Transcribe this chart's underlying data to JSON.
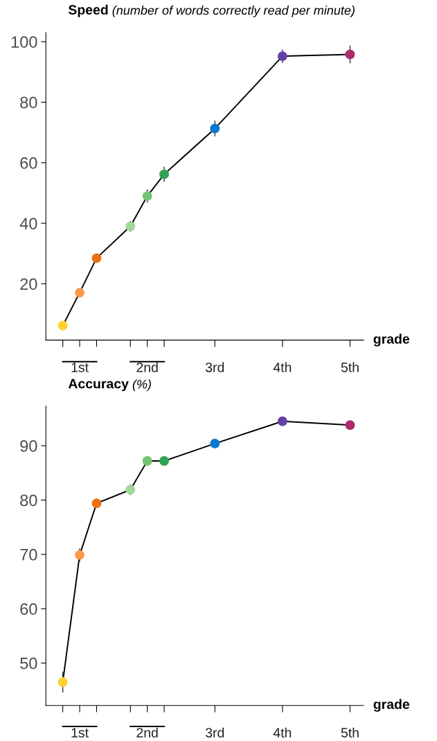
{
  "chart_data": [
    {
      "type": "line",
      "title": "Speed (number of words correctly read per minute)",
      "xlabel": "grade",
      "marker": "circle",
      "line_style": "solid",
      "x": [
        0.75,
        1,
        1.25,
        1.75,
        2,
        2.25,
        3,
        4,
        5
      ],
      "series": [
        {
          "color": "#000000",
          "colors": [
            "#fdd22c",
            "#fd9a4a",
            "#ec7014",
            "#a1d99b",
            "#74c476",
            "#31a354",
            "#0a77d0",
            "#6441a5",
            "#ad2b6d"
          ],
          "values": [
            6.2,
            17.1,
            28.5,
            39.0,
            49.0,
            56.2,
            71.3,
            95.2,
            95.8
          ],
          "errors": [
            null,
            null,
            null,
            1.8,
            2.2,
            2.5,
            2.6,
            2.2,
            2.9
          ]
        }
      ],
      "xlim": [
        0.5,
        5.2
      ],
      "xticks": [
        {
          "value": 0.75,
          "label": null
        },
        {
          "value": 1,
          "label": "1st"
        },
        {
          "value": 1.25,
          "label": null
        },
        {
          "value": 1.75,
          "label": null
        },
        {
          "value": 2,
          "label": "2nd"
        },
        {
          "value": 2.25,
          "label": null
        },
        {
          "value": 3,
          "label": "3rd"
        },
        {
          "value": 4,
          "label": "4th"
        },
        {
          "value": 5,
          "label": "5th"
        }
      ],
      "ylim": [
        1.4,
        103
      ],
      "yticks": [
        20,
        40,
        60,
        80,
        100
      ],
      "grid": false
    },
    {
      "type": "line",
      "title": "Accuracy (%)",
      "xlabel": "grade",
      "marker": "circle",
      "line_style": "solid",
      "x": [
        0.75,
        1,
        1.25,
        1.75,
        2,
        2.25,
        3,
        4,
        5
      ],
      "series": [
        {
          "color": "#000000",
          "colors": [
            "#fdd22c",
            "#fd9a4a",
            "#ec7014",
            "#a1d99b",
            "#74c476",
            "#31a354",
            "#0a77d0",
            "#6441a5",
            "#ad2b6d"
          ],
          "values": [
            46.5,
            69.9,
            79.4,
            81.9,
            87.2,
            87.2,
            90.4,
            94.5,
            93.8
          ],
          "errors": [
            1.9,
            1.2,
            0.8,
            1.0,
            null,
            null,
            null,
            null,
            null
          ]
        }
      ],
      "xlim": [
        0.5,
        5.2
      ],
      "xticks": [
        {
          "value": 0.75,
          "label": null
        },
        {
          "value": 1,
          "label": "1st"
        },
        {
          "value": 1.25,
          "label": null
        },
        {
          "value": 1.75,
          "label": null
        },
        {
          "value": 2,
          "label": "2nd"
        },
        {
          "value": 2.25,
          "label": null
        },
        {
          "value": 3,
          "label": "3rd"
        },
        {
          "value": 4,
          "label": "4th"
        },
        {
          "value": 5,
          "label": "5th"
        }
      ],
      "ylim": [
        42.2,
        97.3
      ],
      "yticks": [
        50,
        60,
        70,
        80,
        90
      ],
      "grid": false
    }
  ]
}
